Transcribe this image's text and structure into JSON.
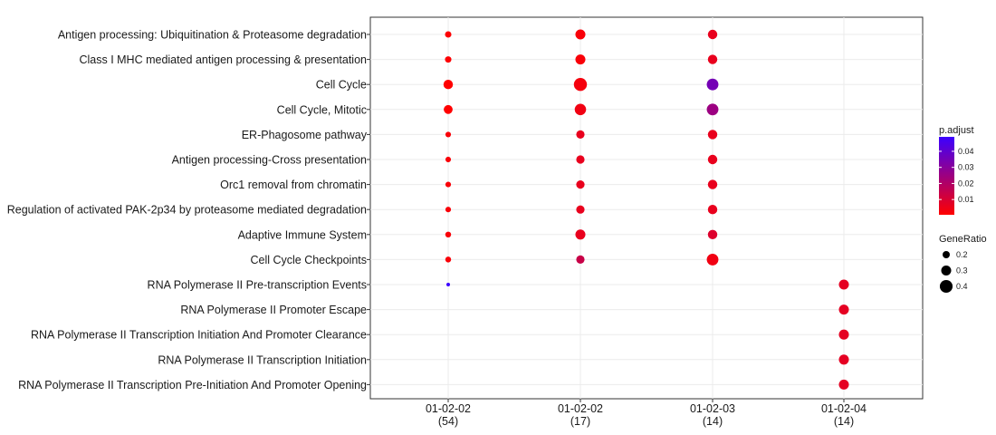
{
  "chart_data": {
    "type": "scatter",
    "title": "",
    "xlabel": "",
    "ylabel": "",
    "categories": [
      {
        "label": "01-02-02",
        "count": "(54)"
      },
      {
        "label": "01-02-02",
        "count": "(17)"
      },
      {
        "label": "01-02-03",
        "count": "(14)"
      },
      {
        "label": "01-02-04",
        "count": "(14)"
      }
    ],
    "terms": [
      "Antigen processing: Ubiquitination & Proteasome degradation",
      "Class I MHC mediated antigen processing & presentation",
      "Cell Cycle",
      "Cell Cycle, Mitotic",
      "ER-Phagosome pathway",
      "Antigen processing-Cross presentation",
      "Orc1 removal from chromatin",
      "Regulation of activated PAK-2p34 by proteasome mediated degradation",
      "Adaptive Immune System",
      "Cell Cycle Checkpoints",
      "RNA Polymerase II Pre-transcription Events",
      "RNA Polymerase II Promoter Escape",
      "RNA Polymerase II Transcription Initiation And Promoter Clearance",
      "RNA Polymerase II Transcription Initiation",
      "RNA Polymerase II Transcription Pre-Initiation And Promoter Opening"
    ],
    "points": [
      {
        "x": 0,
        "y": 0,
        "gene_ratio": 0.17,
        "p_adjust": 0.001
      },
      {
        "x": 0,
        "y": 1,
        "gene_ratio": 0.17,
        "p_adjust": 0.001
      },
      {
        "x": 0,
        "y": 2,
        "gene_ratio": 0.28,
        "p_adjust": 0.0005
      },
      {
        "x": 0,
        "y": 3,
        "gene_ratio": 0.26,
        "p_adjust": 0.0005
      },
      {
        "x": 0,
        "y": 4,
        "gene_ratio": 0.14,
        "p_adjust": 0.002
      },
      {
        "x": 0,
        "y": 5,
        "gene_ratio": 0.14,
        "p_adjust": 0.002
      },
      {
        "x": 0,
        "y": 6,
        "gene_ratio": 0.14,
        "p_adjust": 0.002
      },
      {
        "x": 0,
        "y": 7,
        "gene_ratio": 0.14,
        "p_adjust": 0.002
      },
      {
        "x": 0,
        "y": 8,
        "gene_ratio": 0.15,
        "p_adjust": 0.002
      },
      {
        "x": 0,
        "y": 9,
        "gene_ratio": 0.15,
        "p_adjust": 0.002
      },
      {
        "x": 0,
        "y": 10,
        "gene_ratio": 0.07,
        "p_adjust": 0.049
      },
      {
        "x": 1,
        "y": 0,
        "gene_ratio": 0.3,
        "p_adjust": 0.002
      },
      {
        "x": 1,
        "y": 1,
        "gene_ratio": 0.3,
        "p_adjust": 0.002
      },
      {
        "x": 1,
        "y": 2,
        "gene_ratio": 0.41,
        "p_adjust": 0.003
      },
      {
        "x": 1,
        "y": 3,
        "gene_ratio": 0.35,
        "p_adjust": 0.004
      },
      {
        "x": 1,
        "y": 4,
        "gene_ratio": 0.24,
        "p_adjust": 0.006
      },
      {
        "x": 1,
        "y": 5,
        "gene_ratio": 0.24,
        "p_adjust": 0.006
      },
      {
        "x": 1,
        "y": 6,
        "gene_ratio": 0.24,
        "p_adjust": 0.006
      },
      {
        "x": 1,
        "y": 7,
        "gene_ratio": 0.24,
        "p_adjust": 0.006
      },
      {
        "x": 1,
        "y": 8,
        "gene_ratio": 0.3,
        "p_adjust": 0.006
      },
      {
        "x": 1,
        "y": 9,
        "gene_ratio": 0.24,
        "p_adjust": 0.014
      },
      {
        "x": 2,
        "y": 0,
        "gene_ratio": 0.28,
        "p_adjust": 0.006
      },
      {
        "x": 2,
        "y": 1,
        "gene_ratio": 0.28,
        "p_adjust": 0.006
      },
      {
        "x": 2,
        "y": 2,
        "gene_ratio": 0.36,
        "p_adjust": 0.035
      },
      {
        "x": 2,
        "y": 3,
        "gene_ratio": 0.36,
        "p_adjust": 0.025
      },
      {
        "x": 2,
        "y": 4,
        "gene_ratio": 0.28,
        "p_adjust": 0.006
      },
      {
        "x": 2,
        "y": 5,
        "gene_ratio": 0.28,
        "p_adjust": 0.006
      },
      {
        "x": 2,
        "y": 6,
        "gene_ratio": 0.28,
        "p_adjust": 0.006
      },
      {
        "x": 2,
        "y": 7,
        "gene_ratio": 0.28,
        "p_adjust": 0.006
      },
      {
        "x": 2,
        "y": 8,
        "gene_ratio": 0.28,
        "p_adjust": 0.009
      },
      {
        "x": 2,
        "y": 9,
        "gene_ratio": 0.36,
        "p_adjust": 0.004
      },
      {
        "x": 3,
        "y": 10,
        "gene_ratio": 0.3,
        "p_adjust": 0.007
      },
      {
        "x": 3,
        "y": 11,
        "gene_ratio": 0.3,
        "p_adjust": 0.007
      },
      {
        "x": 3,
        "y": 12,
        "gene_ratio": 0.3,
        "p_adjust": 0.007
      },
      {
        "x": 3,
        "y": 13,
        "gene_ratio": 0.3,
        "p_adjust": 0.007
      },
      {
        "x": 3,
        "y": 14,
        "gene_ratio": 0.3,
        "p_adjust": 0.007
      }
    ],
    "color_legend": {
      "title": "p.adjust",
      "ticks": [
        "0.01",
        "0.02",
        "0.03",
        "0.04"
      ],
      "tick_values": [
        0.01,
        0.02,
        0.03,
        0.04
      ],
      "range": [
        0.0005,
        0.049
      ],
      "low_color": "#ff0000",
      "high_color": "#3b00ff"
    },
    "size_legend": {
      "title": "GeneRatio",
      "values": [
        0.2,
        0.3,
        0.4
      ],
      "labels": [
        "0.2",
        "0.3",
        "0.4"
      ],
      "range": [
        0.07,
        0.41
      ]
    },
    "grid": true,
    "legend_position": "right"
  }
}
